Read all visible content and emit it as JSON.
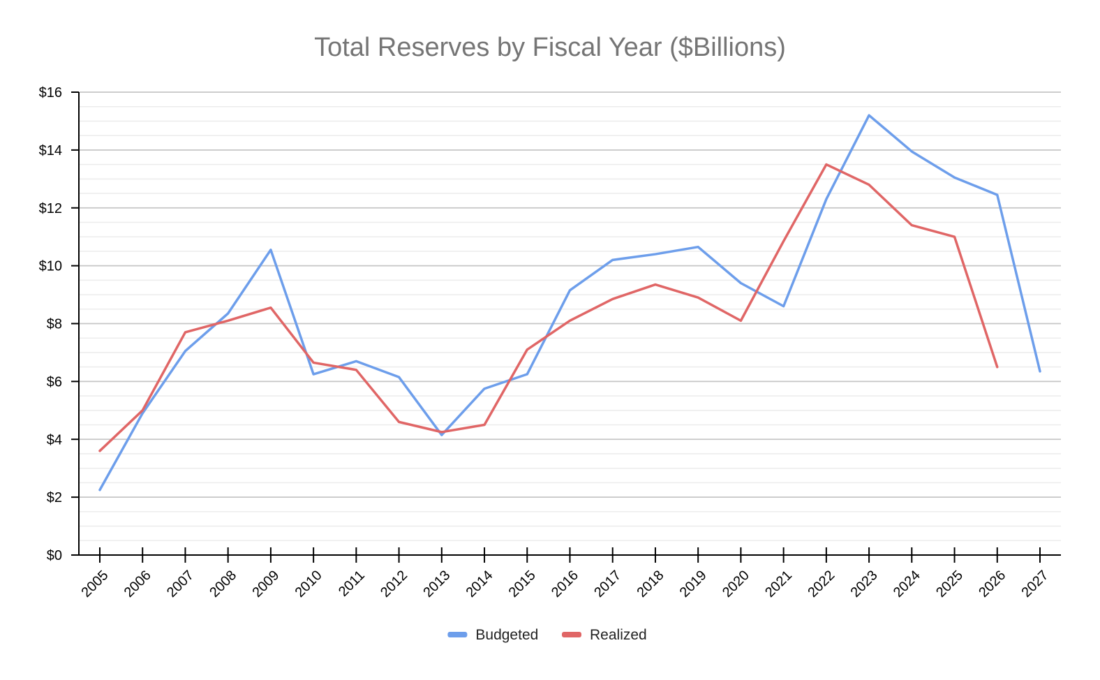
{
  "chart_data": {
    "type": "line",
    "title": "Total Reserves by Fiscal Year ($Billions)",
    "xlabel": "",
    "ylabel": "",
    "ylim": [
      0,
      16
    ],
    "y_ticks": [
      0,
      2,
      4,
      6,
      8,
      10,
      12,
      14,
      16
    ],
    "y_tick_labels": [
      "$0",
      "$2",
      "$4",
      "$6",
      "$8",
      "$10",
      "$12",
      "$14",
      "$16"
    ],
    "minor_gridlines_per_major": 3,
    "grid": true,
    "legend_position": "bottom",
    "categories": [
      "2005",
      "2006",
      "2007",
      "2008",
      "2009",
      "2010",
      "2011",
      "2012",
      "2013",
      "2014",
      "2015",
      "2016",
      "2017",
      "2018",
      "2019",
      "2020",
      "2021",
      "2022",
      "2023",
      "2024",
      "2025",
      "2026",
      "2027"
    ],
    "series": [
      {
        "name": "Budgeted",
        "color": "#6d9eeb",
        "values": [
          2.25,
          4.9,
          7.05,
          8.35,
          10.55,
          6.25,
          6.7,
          6.15,
          4.15,
          5.75,
          6.25,
          9.15,
          10.2,
          10.4,
          10.65,
          9.4,
          8.6,
          12.3,
          15.2,
          13.95,
          13.05,
          12.45,
          6.35
        ]
      },
      {
        "name": "Realized",
        "color": "#e06666",
        "values": [
          3.6,
          5.0,
          7.7,
          8.1,
          8.55,
          6.65,
          6.4,
          4.6,
          4.25,
          4.5,
          7.1,
          8.1,
          8.85,
          9.35,
          8.9,
          8.1,
          10.85,
          13.5,
          12.8,
          11.4,
          11.0,
          6.5,
          null
        ]
      }
    ]
  }
}
